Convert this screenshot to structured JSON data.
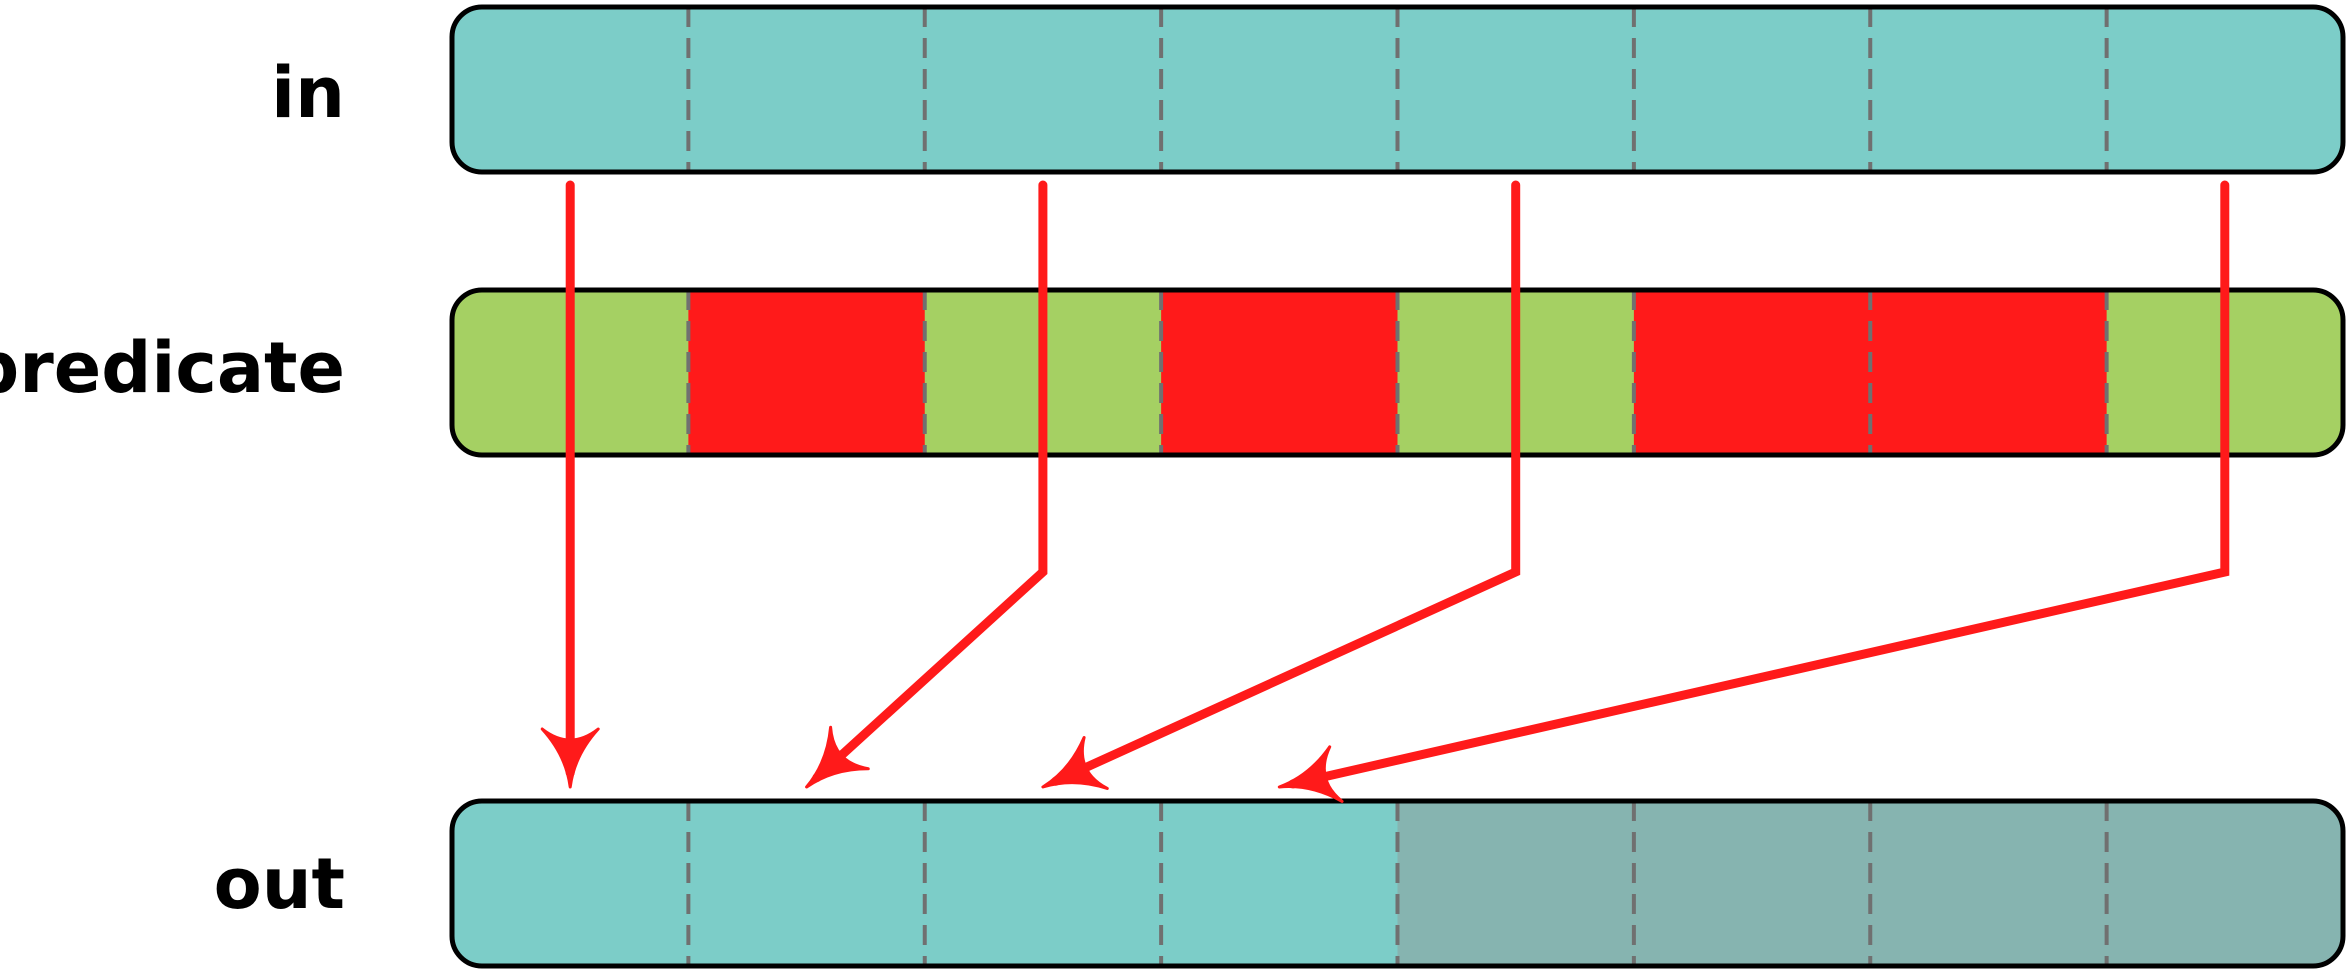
{
  "labels": {
    "in": "in",
    "predicate": "predicate",
    "out": "out"
  },
  "cells_per_row": 8,
  "predicate": [
    true,
    false,
    true,
    false,
    true,
    false,
    false,
    true
  ],
  "out_filled": 4,
  "mapping": [
    {
      "from": 0,
      "to": 0
    },
    {
      "from": 2,
      "to": 1
    },
    {
      "from": 4,
      "to": 2
    },
    {
      "from": 7,
      "to": 3
    }
  ],
  "colors": {
    "in_fill": "#7ccdc8",
    "out_filled": "#7ccdc8",
    "out_empty": "#86b4b0",
    "predicate_true": "#a5d063",
    "predicate_false": "#ff1a1a",
    "arrow": "#ff1a1a",
    "border": "#000000",
    "divider": "#707070"
  }
}
